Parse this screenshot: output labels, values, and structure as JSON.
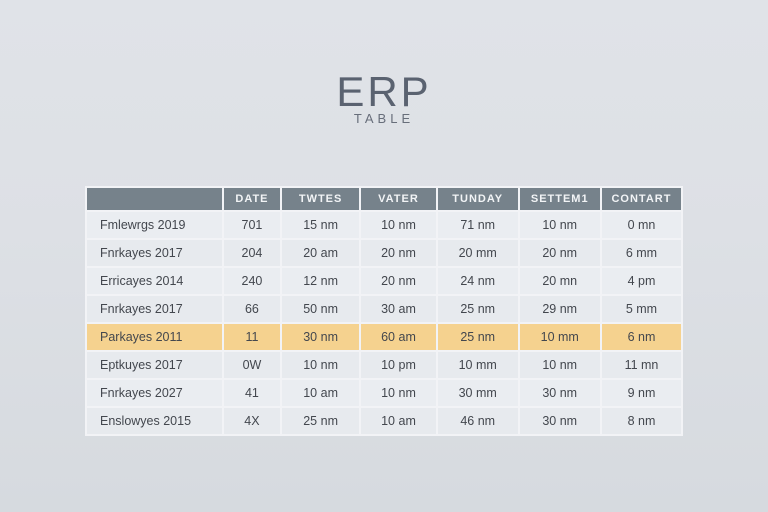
{
  "page": {
    "title": "ERP",
    "subtitle": "TABLE"
  },
  "table": {
    "columns": [
      "",
      "DATE",
      "TWTES",
      "VATER",
      "TUNDAY",
      "SETTEM1",
      "CONTART"
    ],
    "rows": [
      {
        "label": "Fmlewrgs 2019",
        "cells": [
          "701",
          "15 nm",
          "10 nm",
          "71 nm",
          "10 nm",
          "0 mn"
        ],
        "highlighted": false
      },
      {
        "label": "Fnrkayes 2017",
        "cells": [
          "204",
          "20 am",
          "20 nm",
          "20 mm",
          "20 nm",
          "6 mm"
        ],
        "highlighted": false
      },
      {
        "label": "Erricayes 2014",
        "cells": [
          "240",
          "12 nm",
          "20 nm",
          "24 nm",
          "20 mn",
          "4 pm"
        ],
        "highlighted": false
      },
      {
        "label": "Fnrkayes 2017",
        "cells": [
          "66",
          "50 nm",
          "30 am",
          "25 nm",
          "29 nm",
          "5 mm"
        ],
        "highlighted": false
      },
      {
        "label": "Parkayes 2011",
        "cells": [
          "11",
          "30 nm",
          "60 am",
          "25 nm",
          "10 mm",
          "6 nm"
        ],
        "highlighted": true
      },
      {
        "label": "Eptkuyes 2017",
        "cells": [
          "0W",
          "10 nm",
          "10 pm",
          "10 mm",
          "10 nm",
          "11 mn"
        ],
        "highlighted": false
      },
      {
        "label": "Fnrkayes 2027",
        "cells": [
          "41",
          "10 am",
          "10 nm",
          "30 mm",
          "30 nm",
          "9 nm"
        ],
        "highlighted": false
      },
      {
        "label": "Enslowyes 2015",
        "cells": [
          "4X",
          "25 nm",
          "10 am",
          "46 nm",
          "30 nm",
          "8 nm"
        ],
        "highlighted": false
      }
    ]
  },
  "colors": {
    "highlight_row": "#f5d28f",
    "header_bg": "#76828b",
    "header_text": "#f2f4f6",
    "row_bg": "#eaedf1",
    "page_bg": "#dce0e5",
    "body_text": "#43474e",
    "title_color": "#5a6270"
  }
}
